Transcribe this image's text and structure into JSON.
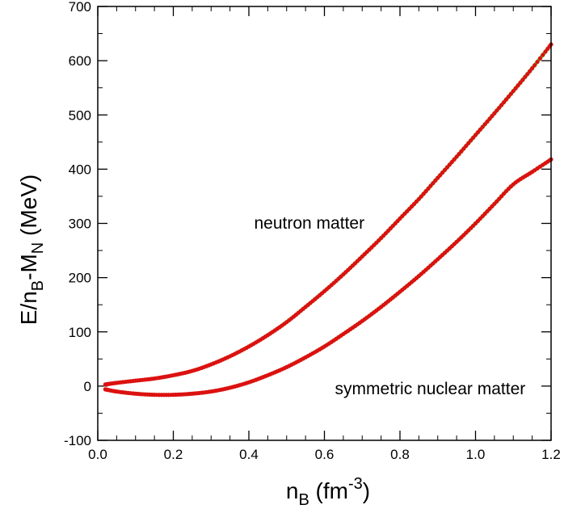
{
  "chart_data": {
    "type": "line",
    "xlim": [
      0.0,
      1.2
    ],
    "ylim": [
      -100,
      700
    ],
    "x_major_ticks": [
      0.0,
      0.2,
      0.4,
      0.6,
      0.8,
      1.0,
      1.2
    ],
    "x_tick_labels": [
      "0.0",
      "0.2",
      "0.4",
      "0.6",
      "0.8",
      "1.0",
      "1.2"
    ],
    "y_major_ticks": [
      -100,
      0,
      100,
      200,
      300,
      400,
      500,
      600,
      700
    ],
    "y_tick_labels": [
      "-100",
      "0",
      "100",
      "200",
      "300",
      "400",
      "500",
      "600",
      "700"
    ],
    "xlabel": {
      "base": "n",
      "sub": "B",
      "unit_open": " (fm",
      "sup": "-3",
      "unit_close": ")"
    },
    "ylabel": {
      "p1": "E/n",
      "sub1": "B",
      "p2": "-M",
      "sub2": "N",
      "p3": " (MeV)"
    },
    "grid": false,
    "line_color": "#33dd33",
    "marker_color": "#dd1111",
    "series": [
      {
        "name": "neutron matter",
        "x": [
          0.02,
          0.05,
          0.1,
          0.15,
          0.2,
          0.25,
          0.3,
          0.35,
          0.4,
          0.45,
          0.5,
          0.55,
          0.6,
          0.65,
          0.7,
          0.75,
          0.8,
          0.85,
          0.9,
          0.95,
          1.0,
          1.05,
          1.1,
          1.15,
          1.2
        ],
        "y": [
          3,
          6,
          10,
          14,
          20,
          28,
          40,
          55,
          73,
          94,
          118,
          146,
          175,
          206,
          239,
          273,
          309,
          345,
          384,
          423,
          463,
          503,
          544,
          586,
          630
        ]
      },
      {
        "name": "symmetric nuclear matter",
        "x": [
          0.02,
          0.05,
          0.1,
          0.15,
          0.2,
          0.25,
          0.3,
          0.35,
          0.4,
          0.45,
          0.5,
          0.55,
          0.6,
          0.65,
          0.7,
          0.75,
          0.8,
          0.85,
          0.9,
          0.95,
          1.0,
          1.05,
          1.1,
          1.15,
          1.2
        ],
        "y": [
          -6,
          -10,
          -14,
          -16,
          -16,
          -14,
          -10,
          -3,
          7,
          20,
          35,
          53,
          73,
          96,
          120,
          146,
          174,
          203,
          234,
          266,
          300,
          336,
          372,
          395,
          418
        ]
      }
    ],
    "annotations": [
      {
        "text": "neutron matter",
        "x": 0.56,
        "y": 290
      },
      {
        "text": "symmetric nuclear matter",
        "x": 0.88,
        "y": -15
      }
    ]
  }
}
